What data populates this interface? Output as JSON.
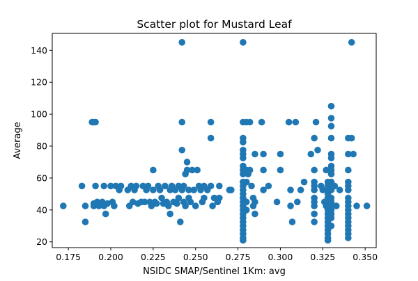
{
  "chart_data": {
    "type": "scatter",
    "title": "Scatter plot for Mustard Leaf",
    "xlabel": "NSIDC SMAP/Sentinel 1Km: avg",
    "ylabel": "Average",
    "xlim": [
      0.1655,
      0.3565
    ],
    "ylim": [
      16.4,
      150.6
    ],
    "xticks": [
      0.175,
      0.2,
      0.225,
      0.25,
      0.275,
      0.3,
      0.325,
      0.35
    ],
    "xtick_labels": [
      "0.175",
      "0.200",
      "0.225",
      "0.250",
      "0.275",
      "0.300",
      "0.325",
      "0.350"
    ],
    "yticks": [
      20,
      40,
      60,
      80,
      100,
      120,
      140
    ],
    "ytick_labels": [
      "20",
      "40",
      "60",
      "80",
      "100",
      "120",
      "140"
    ],
    "grid": false,
    "color": "#1f77b4",
    "points": [
      [
        0.172,
        42.5
      ],
      [
        0.183,
        55
      ],
      [
        0.185,
        42.5
      ],
      [
        0.185,
        32.5
      ],
      [
        0.189,
        95
      ],
      [
        0.19,
        95
      ],
      [
        0.191,
        95
      ],
      [
        0.19,
        42.5
      ],
      [
        0.19,
        44
      ],
      [
        0.191,
        55
      ],
      [
        0.192,
        45
      ],
      [
        0.193,
        42.5
      ],
      [
        0.195,
        45
      ],
      [
        0.196,
        42.5
      ],
      [
        0.196,
        55
      ],
      [
        0.197,
        37.5
      ],
      [
        0.198,
        44
      ],
      [
        0.2,
        55
      ],
      [
        0.201,
        45
      ],
      [
        0.202,
        42.5
      ],
      [
        0.203,
        55
      ],
      [
        0.205,
        52.5
      ],
      [
        0.206,
        55
      ],
      [
        0.21,
        52.5
      ],
      [
        0.211,
        42.5
      ],
      [
        0.212,
        55
      ],
      [
        0.213,
        45
      ],
      [
        0.214,
        52.5
      ],
      [
        0.215,
        55
      ],
      [
        0.216,
        44
      ],
      [
        0.218,
        45
      ],
      [
        0.219,
        55
      ],
      [
        0.22,
        45
      ],
      [
        0.221,
        52.5
      ],
      [
        0.222,
        55
      ],
      [
        0.223,
        45
      ],
      [
        0.224,
        42.5
      ],
      [
        0.225,
        52.5
      ],
      [
        0.225,
        65
      ],
      [
        0.226,
        45
      ],
      [
        0.227,
        44
      ],
      [
        0.228,
        55
      ],
      [
        0.229,
        52.5
      ],
      [
        0.23,
        47.5
      ],
      [
        0.231,
        44
      ],
      [
        0.232,
        55
      ],
      [
        0.233,
        45
      ],
      [
        0.234,
        42.5
      ],
      [
        0.235,
        52.5
      ],
      [
        0.235,
        37.5
      ],
      [
        0.236,
        55
      ],
      [
        0.237,
        45
      ],
      [
        0.238,
        52.5
      ],
      [
        0.239,
        44
      ],
      [
        0.24,
        55
      ],
      [
        0.24,
        47.5
      ],
      [
        0.241,
        32.5
      ],
      [
        0.242,
        145
      ],
      [
        0.242,
        95
      ],
      [
        0.242,
        77.5
      ],
      [
        0.242,
        52.5
      ],
      [
        0.243,
        55
      ],
      [
        0.243,
        45
      ],
      [
        0.244,
        42.5
      ],
      [
        0.244,
        62.5
      ],
      [
        0.245,
        70
      ],
      [
        0.245,
        65
      ],
      [
        0.246,
        52.5
      ],
      [
        0.246,
        47.5
      ],
      [
        0.247,
        45
      ],
      [
        0.248,
        65
      ],
      [
        0.249,
        52.5
      ],
      [
        0.25,
        42.5
      ],
      [
        0.251,
        65
      ],
      [
        0.252,
        55
      ],
      [
        0.253,
        52.5
      ],
      [
        0.254,
        45
      ],
      [
        0.255,
        47.5
      ],
      [
        0.255,
        55
      ],
      [
        0.257,
        52.5
      ],
      [
        0.259,
        95
      ],
      [
        0.259,
        85
      ],
      [
        0.259,
        55
      ],
      [
        0.26,
        42.5
      ],
      [
        0.261,
        47.5
      ],
      [
        0.263,
        45
      ],
      [
        0.264,
        47.5
      ],
      [
        0.264,
        55
      ],
      [
        0.27,
        52.5
      ],
      [
        0.271,
        52.5
      ],
      [
        0.278,
        145
      ],
      [
        0.278,
        95
      ],
      [
        0.278,
        85
      ],
      [
        0.278,
        82.5
      ],
      [
        0.278,
        77.5
      ],
      [
        0.278,
        75
      ],
      [
        0.278,
        72.5
      ],
      [
        0.278,
        67.5
      ],
      [
        0.278,
        65
      ],
      [
        0.278,
        62.5
      ],
      [
        0.278,
        57.5
      ],
      [
        0.278,
        55
      ],
      [
        0.278,
        52.5
      ],
      [
        0.278,
        50
      ],
      [
        0.278,
        47.5
      ],
      [
        0.278,
        45
      ],
      [
        0.278,
        42.5
      ],
      [
        0.278,
        40
      ],
      [
        0.278,
        37.5
      ],
      [
        0.278,
        35
      ],
      [
        0.278,
        32.5
      ],
      [
        0.278,
        30
      ],
      [
        0.278,
        27.5
      ],
      [
        0.278,
        25
      ],
      [
        0.278,
        22.5
      ],
      [
        0.278,
        21
      ],
      [
        0.28,
        95
      ],
      [
        0.28,
        65
      ],
      [
        0.28,
        57.5
      ],
      [
        0.28,
        45
      ],
      [
        0.28,
        40
      ],
      [
        0.281,
        62.5
      ],
      [
        0.282,
        95
      ],
      [
        0.282,
        65
      ],
      [
        0.283,
        55
      ],
      [
        0.284,
        47.5
      ],
      [
        0.284,
        42.5
      ],
      [
        0.285,
        75
      ],
      [
        0.285,
        45
      ],
      [
        0.285,
        37.5
      ],
      [
        0.289,
        95
      ],
      [
        0.29,
        75
      ],
      [
        0.29,
        65
      ],
      [
        0.29,
        52.5
      ],
      [
        0.293,
        55
      ],
      [
        0.298,
        45
      ],
      [
        0.3,
        75
      ],
      [
        0.3,
        65
      ],
      [
        0.305,
        95
      ],
      [
        0.306,
        52.5
      ],
      [
        0.306,
        42.5
      ],
      [
        0.307,
        32.5
      ],
      [
        0.309,
        95
      ],
      [
        0.31,
        45
      ],
      [
        0.312,
        52.5
      ],
      [
        0.314,
        57.5
      ],
      [
        0.318,
        75
      ],
      [
        0.32,
        85
      ],
      [
        0.32,
        65
      ],
      [
        0.32,
        57.5
      ],
      [
        0.32,
        55
      ],
      [
        0.32,
        52.5
      ],
      [
        0.32,
        47.5
      ],
      [
        0.32,
        45
      ],
      [
        0.32,
        42.5
      ],
      [
        0.32,
        37.5
      ],
      [
        0.32,
        32.5
      ],
      [
        0.321,
        95
      ],
      [
        0.322,
        77.5
      ],
      [
        0.324,
        55
      ],
      [
        0.325,
        52.5
      ],
      [
        0.326,
        45
      ],
      [
        0.327,
        65
      ],
      [
        0.327,
        42.5
      ],
      [
        0.328,
        57.5
      ],
      [
        0.328,
        55
      ],
      [
        0.328,
        52.5
      ],
      [
        0.328,
        50
      ],
      [
        0.328,
        47.5
      ],
      [
        0.328,
        45
      ],
      [
        0.328,
        42.5
      ],
      [
        0.328,
        40
      ],
      [
        0.328,
        37.5
      ],
      [
        0.328,
        35
      ],
      [
        0.328,
        32.5
      ],
      [
        0.328,
        30
      ],
      [
        0.328,
        27.5
      ],
      [
        0.328,
        25
      ],
      [
        0.328,
        22.5
      ],
      [
        0.328,
        21
      ],
      [
        0.33,
        105
      ],
      [
        0.33,
        97.5
      ],
      [
        0.33,
        92.5
      ],
      [
        0.33,
        85
      ],
      [
        0.33,
        75
      ],
      [
        0.33,
        72.5
      ],
      [
        0.33,
        67.5
      ],
      [
        0.33,
        65
      ],
      [
        0.33,
        62.5
      ],
      [
        0.33,
        57.5
      ],
      [
        0.33,
        55
      ],
      [
        0.33,
        52.5
      ],
      [
        0.33,
        47.5
      ],
      [
        0.33,
        45
      ],
      [
        0.33,
        42.5
      ],
      [
        0.33,
        40
      ],
      [
        0.33,
        37.5
      ],
      [
        0.33,
        35
      ],
      [
        0.33,
        30
      ],
      [
        0.332,
        55
      ],
      [
        0.333,
        42.5
      ],
      [
        0.335,
        52.5
      ],
      [
        0.34,
        85
      ],
      [
        0.34,
        75
      ],
      [
        0.34,
        65
      ],
      [
        0.34,
        57.5
      ],
      [
        0.34,
        55
      ],
      [
        0.34,
        52.5
      ],
      [
        0.34,
        47.5
      ],
      [
        0.34,
        45
      ],
      [
        0.34,
        42.5
      ],
      [
        0.34,
        40
      ],
      [
        0.34,
        37.5
      ],
      [
        0.34,
        35
      ],
      [
        0.34,
        32.5
      ],
      [
        0.34,
        30
      ],
      [
        0.34,
        27.5
      ],
      [
        0.34,
        25
      ],
      [
        0.34,
        22.5
      ],
      [
        0.342,
        145
      ],
      [
        0.342,
        85
      ],
      [
        0.343,
        75
      ],
      [
        0.345,
        42.5
      ],
      [
        0.351,
        42.5
      ]
    ]
  }
}
